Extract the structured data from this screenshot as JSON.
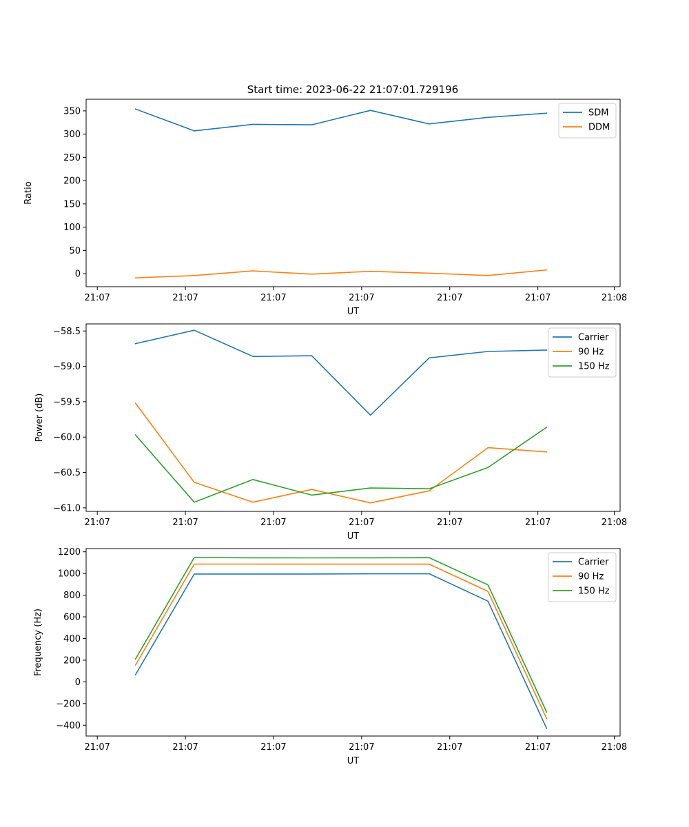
{
  "chart_data": [
    {
      "type": "line",
      "title": "Start time: 2023-06-22 21:07:01.729196",
      "xlabel": "UT",
      "ylabel": "Ratio",
      "x": [
        1,
        2,
        3,
        4,
        5,
        6,
        7,
        8
      ],
      "xlim": [
        0.16,
        9.25
      ],
      "x_ticks": [
        0.35,
        1.85,
        3.35,
        4.85,
        6.35,
        7.85,
        9.15
      ],
      "x_tick_labels": [
        "21:07",
        "21:07",
        "21:07",
        "21:07",
        "21:07",
        "21:07",
        "21:08"
      ],
      "ylim": [
        -28,
        375
      ],
      "y_ticks": [
        0,
        50,
        100,
        150,
        200,
        250,
        300,
        350
      ],
      "y_tick_labels": [
        "0",
        "50",
        "100",
        "150",
        "200",
        "250",
        "300",
        "350"
      ],
      "legend_position": "top-right",
      "series": [
        {
          "name": "SDM",
          "color": "#1f77b4",
          "values": [
            354,
            307,
            321,
            320,
            351,
            322,
            336,
            345
          ]
        },
        {
          "name": "DDM",
          "color": "#ff7f0e",
          "values": [
            -9,
            -4,
            6,
            -1,
            5,
            1,
            -4,
            8
          ]
        }
      ]
    },
    {
      "type": "line",
      "title": "",
      "xlabel": "UT",
      "ylabel": "Power (dB)",
      "x": [
        1,
        2,
        3,
        4,
        5,
        6,
        7,
        8
      ],
      "xlim": [
        0.16,
        9.25
      ],
      "x_ticks": [
        0.35,
        1.85,
        3.35,
        4.85,
        6.35,
        7.85,
        9.15
      ],
      "x_tick_labels": [
        "21:07",
        "21:07",
        "21:07",
        "21:07",
        "21:07",
        "21:07",
        "21:08"
      ],
      "ylim": [
        -61.05,
        -58.4
      ],
      "y_ticks": [
        -61.0,
        -60.5,
        -60.0,
        -59.5,
        -59.0,
        -58.5
      ],
      "y_tick_labels": [
        "−61.0",
        "−60.5",
        "−60.0",
        "−59.5",
        "−59.0",
        "−58.5"
      ],
      "legend_position": "top-right",
      "series": [
        {
          "name": "Carrier",
          "color": "#1f77b4",
          "values": [
            -58.68,
            -58.49,
            -58.86,
            -58.85,
            -59.69,
            -58.88,
            -58.79,
            -58.77
          ]
        },
        {
          "name": "90 Hz",
          "color": "#ff7f0e",
          "values": [
            -59.52,
            -60.64,
            -60.92,
            -60.74,
            -60.93,
            -60.76,
            -60.15,
            -60.21
          ]
        },
        {
          "name": "150 Hz",
          "color": "#2ca02c",
          "values": [
            -59.97,
            -60.92,
            -60.6,
            -60.82,
            -60.72,
            -60.73,
            -60.43,
            -59.86
          ]
        }
      ]
    },
    {
      "type": "line",
      "title": "",
      "xlabel": "UT",
      "ylabel": "Frequency (Hz)",
      "x": [
        1,
        2,
        3,
        4,
        5,
        6,
        7,
        8
      ],
      "xlim": [
        0.16,
        9.25
      ],
      "x_ticks": [
        0.35,
        1.85,
        3.35,
        4.85,
        6.35,
        7.85,
        9.15
      ],
      "x_tick_labels": [
        "21:07",
        "21:07",
        "21:07",
        "21:07",
        "21:07",
        "21:07",
        "21:08"
      ],
      "ylim": [
        -500,
        1230
      ],
      "y_ticks": [
        -400,
        -200,
        0,
        200,
        400,
        600,
        800,
        1000,
        1200
      ],
      "y_tick_labels": [
        "−400",
        "−200",
        "0",
        "200",
        "400",
        "600",
        "800",
        "1000",
        "1200"
      ],
      "legend_position": "top-right",
      "series": [
        {
          "name": "Carrier",
          "color": "#1f77b4",
          "values": [
            65,
            995,
            995,
            995,
            997,
            998,
            745,
            -430
          ]
        },
        {
          "name": "90 Hz",
          "color": "#ff7f0e",
          "values": [
            155,
            1087,
            1087,
            1086,
            1086,
            1086,
            835,
            -340
          ]
        },
        {
          "name": "150 Hz",
          "color": "#2ca02c",
          "values": [
            210,
            1147,
            1145,
            1144,
            1145,
            1146,
            895,
            -280
          ]
        }
      ]
    }
  ]
}
